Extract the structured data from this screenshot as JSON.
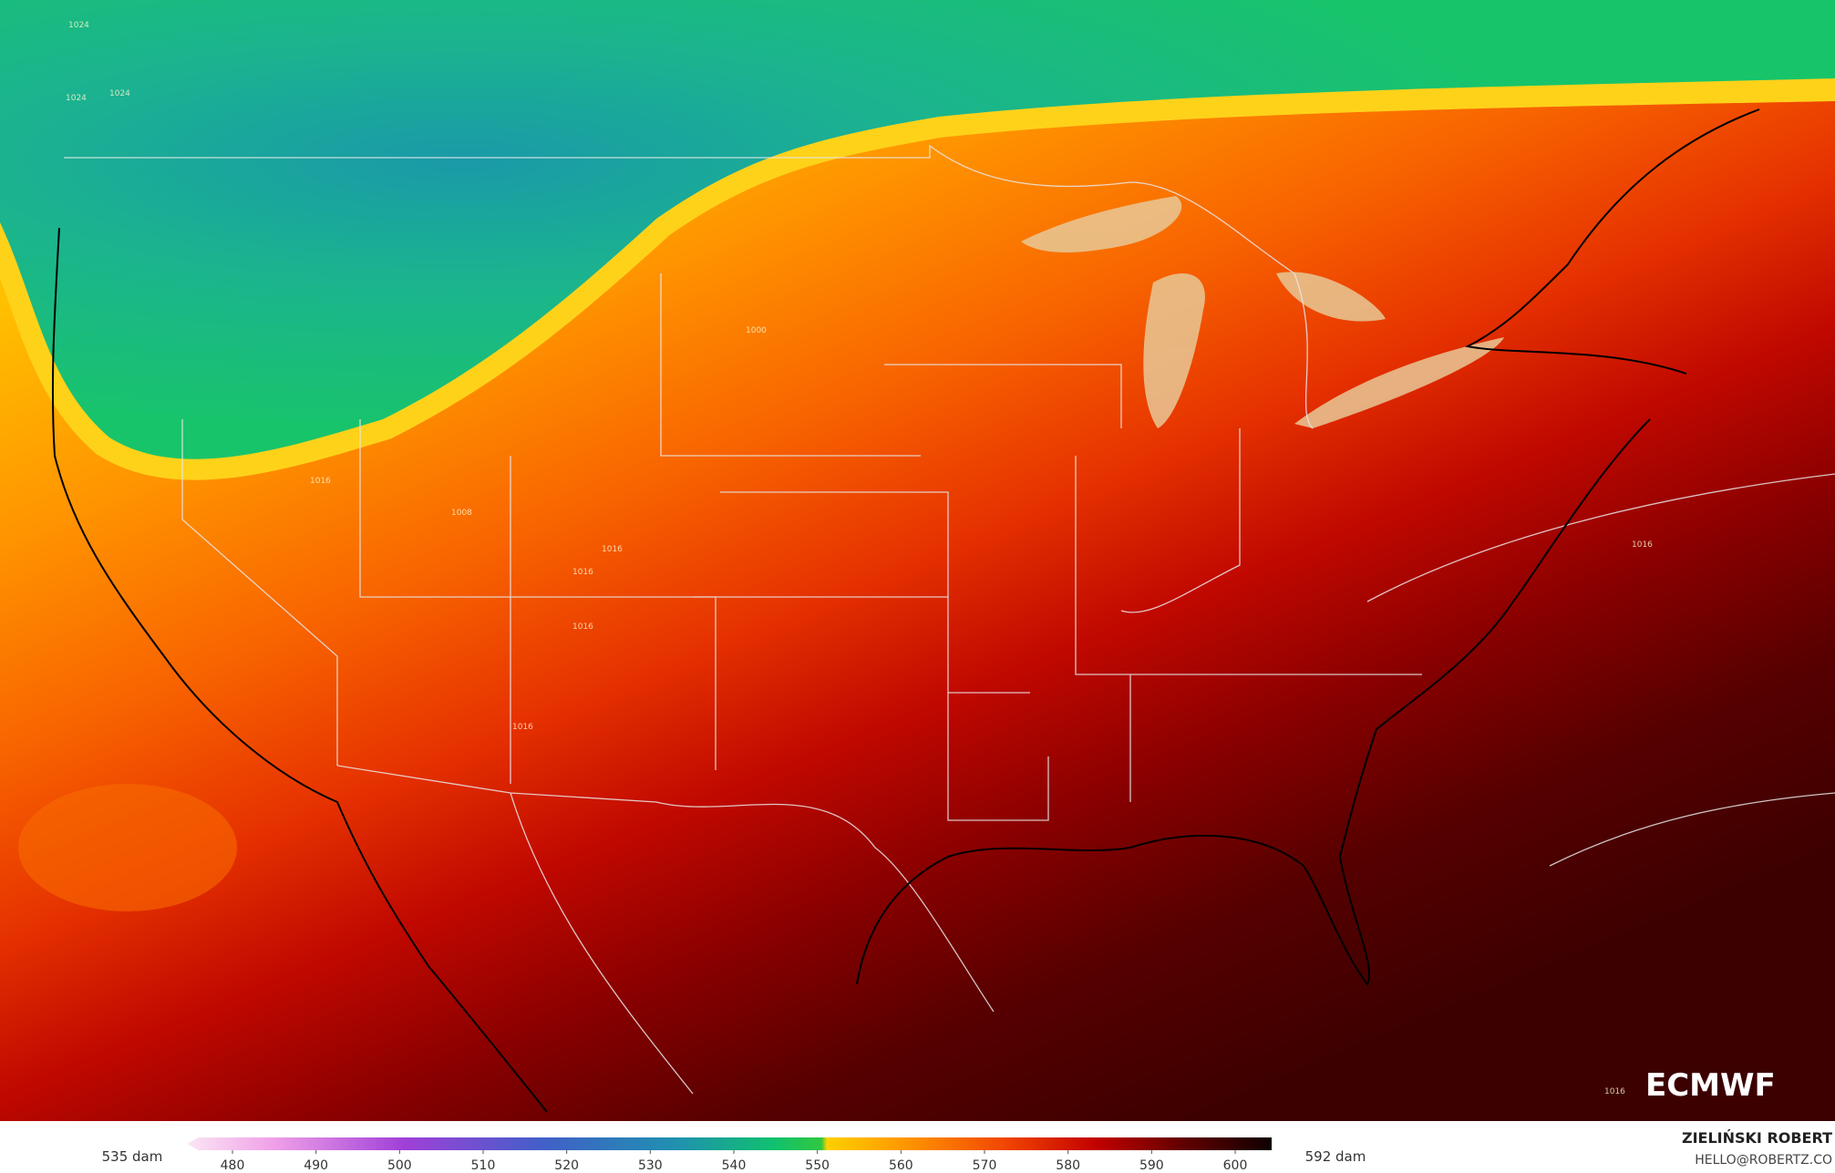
{
  "map": {
    "contour_labels": [
      "1024",
      "1024",
      "1024",
      "1016",
      "1008",
      "1016",
      "1016",
      "1016",
      "1016",
      "1000",
      "1016",
      "1016"
    ],
    "logo": "ECMWF",
    "colorbar": {
      "ticks": [
        480,
        490,
        500,
        510,
        520,
        530,
        540,
        550,
        560,
        570,
        580,
        590,
        600
      ],
      "min_label": "535 dam",
      "max_label": "592 dam"
    },
    "author": "ZIELIŃSKI ROBERT",
    "contact": "HELLO@ROBERTZ.CO"
  }
}
